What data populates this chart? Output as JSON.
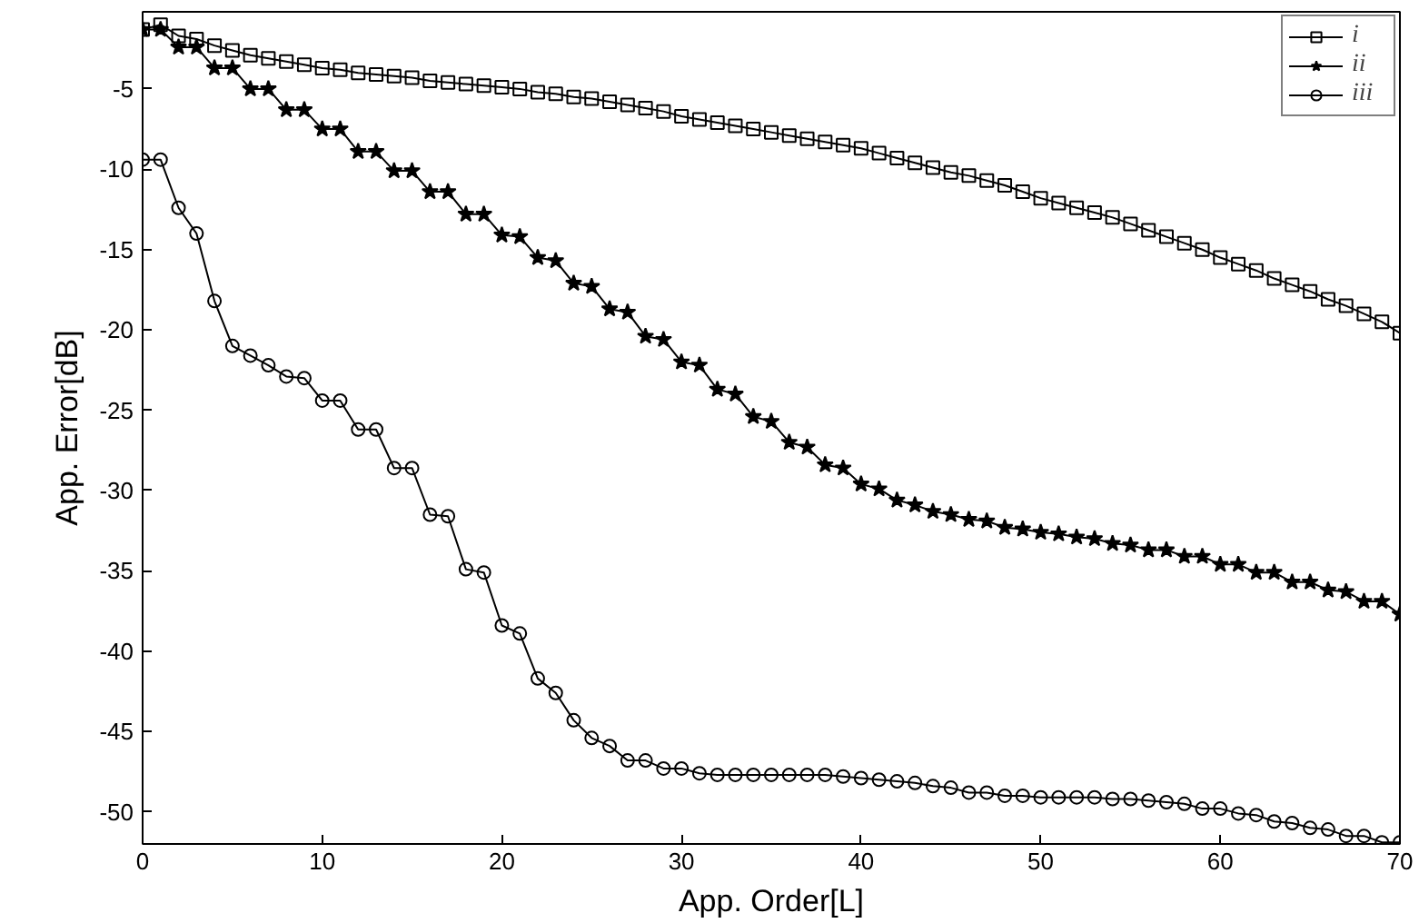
{
  "chart_data": {
    "type": "line",
    "xlabel": "App. Order[L]",
    "ylabel": "App. Error[dB]",
    "x": [
      0,
      1,
      2,
      3,
      4,
      5,
      6,
      7,
      8,
      9,
      10,
      11,
      12,
      13,
      14,
      15,
      16,
      17,
      18,
      19,
      20,
      21,
      22,
      23,
      24,
      25,
      26,
      27,
      28,
      29,
      30,
      31,
      32,
      33,
      34,
      35,
      36,
      37,
      38,
      39,
      40,
      41,
      42,
      43,
      44,
      45,
      46,
      47,
      48,
      49,
      50,
      51,
      52,
      53,
      54,
      55,
      56,
      57,
      58,
      59,
      60,
      61,
      62,
      63,
      64,
      65,
      66,
      67,
      68,
      69,
      70
    ],
    "series": [
      {
        "name": "i",
        "color": "#000000",
        "marker": "square",
        "values": [
          -1.3,
          -1.0,
          -1.7,
          -1.9,
          -2.3,
          -2.6,
          -2.9,
          -3.1,
          -3.3,
          -3.5,
          -3.7,
          -3.8,
          -4.0,
          -4.1,
          -4.2,
          -4.3,
          -4.5,
          -4.6,
          -4.7,
          -4.8,
          -4.9,
          -5.0,
          -5.2,
          -5.3,
          -5.5,
          -5.6,
          -5.8,
          -6.0,
          -6.2,
          -6.4,
          -6.7,
          -6.9,
          -7.1,
          -7.3,
          -7.5,
          -7.7,
          -7.9,
          -8.1,
          -8.3,
          -8.5,
          -8.7,
          -9.0,
          -9.3,
          -9.6,
          -9.9,
          -10.2,
          -10.4,
          -10.7,
          -11.0,
          -11.4,
          -11.8,
          -12.1,
          -12.4,
          -12.7,
          -13.0,
          -13.4,
          -13.8,
          -14.2,
          -14.6,
          -15.0,
          -15.5,
          -15.9,
          -16.3,
          -16.8,
          -17.2,
          -17.6,
          -18.1,
          -18.5,
          -19.0,
          -19.5,
          -20.2
        ]
      },
      {
        "name": "ii",
        "color": "#000000",
        "marker": "star",
        "values": [
          -1.3,
          -1.3,
          -2.4,
          -2.4,
          -3.7,
          -3.7,
          -5.0,
          -5.0,
          -6.3,
          -6.3,
          -7.5,
          -7.5,
          -8.9,
          -8.9,
          -10.1,
          -10.1,
          -11.4,
          -11.4,
          -12.8,
          -12.8,
          -14.1,
          -14.2,
          -15.5,
          -15.7,
          -17.1,
          -17.3,
          -18.7,
          -18.9,
          -20.4,
          -20.6,
          -22.0,
          -22.2,
          -23.7,
          -24.0,
          -25.4,
          -25.7,
          -27.0,
          -27.3,
          -28.4,
          -28.6,
          -29.6,
          -29.9,
          -30.6,
          -30.9,
          -31.3,
          -31.5,
          -31.8,
          -31.9,
          -32.3,
          -32.4,
          -32.6,
          -32.7,
          -32.9,
          -33.0,
          -33.3,
          -33.4,
          -33.7,
          -33.7,
          -34.1,
          -34.1,
          -34.6,
          -34.6,
          -35.1,
          -35.1,
          -35.7,
          -35.7,
          -36.2,
          -36.3,
          -36.9,
          -36.9,
          -37.7
        ]
      },
      {
        "name": "iii",
        "color": "#000000",
        "marker": "circle",
        "values": [
          -9.4,
          -9.4,
          -12.4,
          -14.0,
          -18.2,
          -21.0,
          -21.6,
          -22.2,
          -22.9,
          -23.0,
          -24.4,
          -24.4,
          -26.2,
          -26.2,
          -28.6,
          -28.6,
          -31.5,
          -31.6,
          -34.9,
          -35.1,
          -38.4,
          -38.9,
          -41.7,
          -42.6,
          -44.3,
          -45.4,
          -45.9,
          -46.8,
          -46.8,
          -47.3,
          -47.3,
          -47.6,
          -47.7,
          -47.7,
          -47.7,
          -47.7,
          -47.7,
          -47.7,
          -47.7,
          -47.8,
          -47.9,
          -48.0,
          -48.1,
          -48.2,
          -48.4,
          -48.5,
          -48.8,
          -48.8,
          -49.0,
          -49.0,
          -49.1,
          -49.1,
          -49.1,
          -49.1,
          -49.2,
          -49.2,
          -49.3,
          -49.4,
          -49.5,
          -49.8,
          -49.8,
          -50.1,
          -50.2,
          -50.6,
          -50.7,
          -51.0,
          -51.1,
          -51.5,
          -51.5,
          -51.9,
          -51.9
        ]
      }
    ],
    "xlim": [
      0,
      70
    ],
    "ylim": [
      -52,
      -0.2
    ],
    "xticks": [
      0,
      10,
      20,
      30,
      40,
      50,
      60,
      70
    ],
    "yticks": [
      -50,
      -45,
      -40,
      -35,
      -30,
      -25,
      -20,
      -15,
      -10,
      -5
    ],
    "grid": false,
    "legend": "top right",
    "line_style": "solid"
  }
}
